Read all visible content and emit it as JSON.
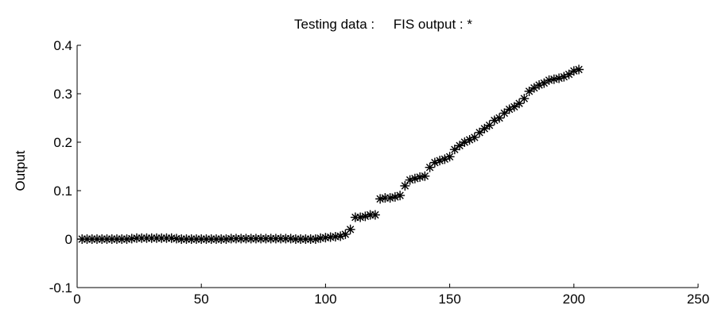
{
  "chart_data": {
    "type": "scatter",
    "title": "Testing data :     FIS output : *",
    "xlabel": "",
    "ylabel": "Output",
    "xlim": [
      0,
      250
    ],
    "ylim": [
      -0.1,
      0.4
    ],
    "xticks": [
      0,
      50,
      100,
      150,
      200,
      250
    ],
    "yticks": [
      -0.1,
      0,
      0.1,
      0.2,
      0.3,
      0.4
    ],
    "xtick_labels": [
      "0",
      "50",
      "100",
      "150",
      "200",
      "250"
    ],
    "ytick_labels": [
      "-0.1",
      "0",
      "0.1",
      "0.2",
      "0.3",
      "0.4"
    ],
    "grid": false,
    "marker": "*",
    "marker_color": "#000000",
    "series": [
      {
        "x": [
          2,
          4,
          6,
          8,
          10,
          12,
          14,
          16,
          18,
          20,
          22,
          24,
          26,
          28,
          30,
          32,
          34,
          36,
          38,
          40,
          42,
          44,
          46,
          48,
          50,
          52,
          54,
          56,
          58,
          60,
          62,
          64,
          66,
          68,
          70,
          72,
          74,
          76,
          78,
          80,
          82,
          84,
          86,
          88,
          90,
          92,
          94,
          96,
          98,
          100,
          102,
          104,
          106,
          108,
          110,
          112,
          114,
          116,
          118,
          120,
          122,
          124,
          126,
          128,
          130,
          132,
          134,
          136,
          138,
          140,
          142,
          144,
          146,
          148,
          150,
          152,
          154,
          156,
          158,
          160,
          162,
          164,
          166,
          168,
          170,
          172,
          174,
          176,
          178,
          180,
          182,
          184,
          186,
          188,
          190,
          192,
          194,
          196,
          198,
          200,
          202
        ],
        "y": [
          0,
          0,
          0,
          0,
          0,
          0,
          0,
          0,
          0,
          0,
          0.001,
          0.002,
          0.002,
          0.002,
          0.002,
          0.002,
          0.002,
          0.002,
          0.002,
          0.001,
          0,
          0,
          0,
          0,
          0,
          0,
          0,
          0,
          0,
          0,
          0.001,
          0.001,
          0.001,
          0.001,
          0.001,
          0.001,
          0.001,
          0.001,
          0.001,
          0.001,
          0.001,
          0.001,
          0.001,
          0,
          0,
          0,
          0,
          0,
          0.002,
          0.003,
          0.004,
          0.005,
          0.006,
          0.01,
          0.02,
          0.045,
          0.045,
          0.047,
          0.05,
          0.05,
          0.083,
          0.085,
          0.085,
          0.087,
          0.09,
          0.11,
          0.122,
          0.125,
          0.128,
          0.13,
          0.148,
          0.158,
          0.162,
          0.165,
          0.17,
          0.185,
          0.193,
          0.2,
          0.205,
          0.21,
          0.22,
          0.228,
          0.235,
          0.245,
          0.25,
          0.26,
          0.268,
          0.273,
          0.28,
          0.29,
          0.305,
          0.312,
          0.318,
          0.322,
          0.328,
          0.33,
          0.332,
          0.335,
          0.34,
          0.347,
          0.35
        ]
      }
    ]
  }
}
